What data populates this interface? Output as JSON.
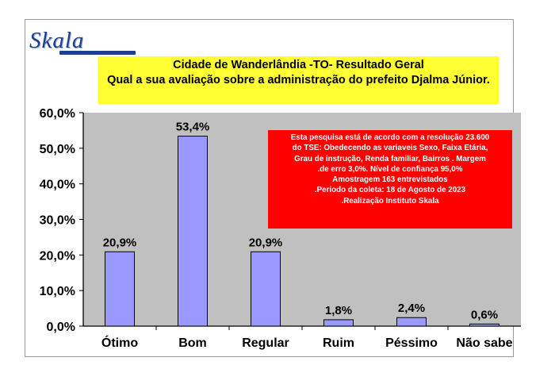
{
  "header": {
    "logo_text": "Skala"
  },
  "colors": {
    "plot_background": "#c0c0c0",
    "bar_fill": "#9999ff",
    "title_background": "#ffff33",
    "note_background": "#ff0000"
  },
  "chart_data": {
    "type": "bar",
    "title_line1": "Cidade de Wanderlândia -TO- Resultado Geral",
    "title_line2": "Qual a sua avaliação sobre a administração do prefeito Djalma Júnior.",
    "categories": [
      "Ótimo",
      "Bom",
      "Regular",
      "Ruim",
      "Péssimo",
      "Não sabe"
    ],
    "values": [
      20.9,
      53.4,
      20.9,
      1.8,
      2.4,
      0.6
    ],
    "value_labels": [
      "20,9%",
      "53,4%",
      "20,9%",
      "1,8%",
      "2,4%",
      "0,6%"
    ],
    "ylim": [
      0,
      60
    ],
    "yticks": [
      0,
      10,
      20,
      30,
      40,
      50,
      60
    ],
    "ytick_labels": [
      "0,0%",
      "10,0%",
      "20,0%",
      "30,0%",
      "40,0%",
      "50,0%",
      "60,0%"
    ],
    "grid": false,
    "legend": "none",
    "annotation": [
      "Esta pesquisa está de acordo com a resolução 23.600",
      "do TSE: Obedecendo as variaveis Sexo, Faixa Etária,",
      "Grau de instrução, Renda familiar, Bairros . Margem",
      ".de erro 3,0%. Nível de confiança 95,0%",
      "Amostragem 163  entrevistados",
      ".Periodo da coleta: 18 de Agosto de 2023",
      ".Realização Instituto Skala"
    ]
  }
}
